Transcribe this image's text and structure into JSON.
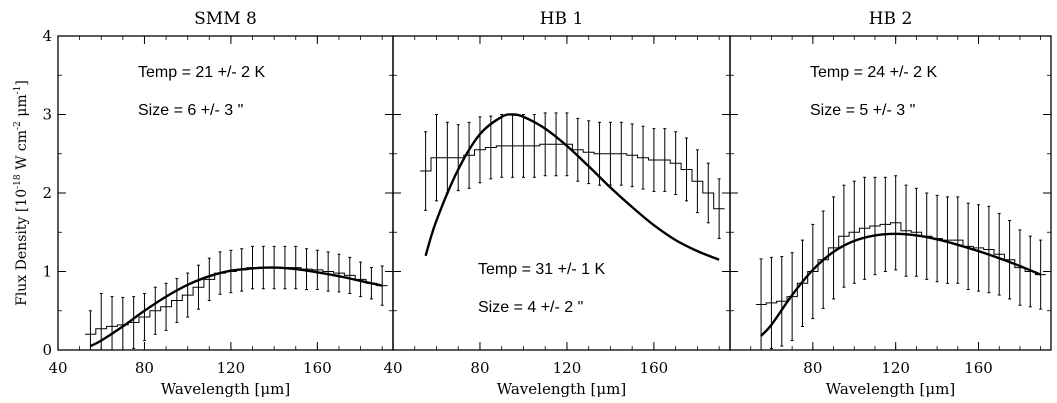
{
  "figure": {
    "ylabel_prefix": "Flux Density [10",
    "ylabel_exp1": "-18",
    "ylabel_mid": " W cm",
    "ylabel_exp2": "-2",
    "ylabel_mu": " μm",
    "ylabel_exp3": "-1",
    "ylabel_suffix": "]",
    "colors": {
      "line": "#000000",
      "background": "#ffffff"
    }
  },
  "chart_data": [
    {
      "type": "line",
      "title": "SMM 8",
      "xlabel": "Wavelength [μm]",
      "ylabel": "Flux Density [10^-18 W cm^-2 μm^-1]",
      "xlim": [
        40,
        195
      ],
      "ylim": [
        0,
        4
      ],
      "xticks": [
        40,
        80,
        120,
        160
      ],
      "xtick_labels": [
        "40",
        "80",
        "120",
        "160"
      ],
      "yticks": [
        0,
        1,
        2,
        3,
        4
      ],
      "ytick_labels": [
        "0",
        "1",
        "2",
        "3",
        "4"
      ],
      "annotations": [
        "Temp = 21 +/- 2 K",
        "Size = 6 +/- 3 \""
      ],
      "annotation_placement": "top",
      "spectrum": {
        "x": [
          55,
          60,
          65,
          70,
          75,
          80,
          85,
          90,
          95,
          100,
          105,
          110,
          115,
          120,
          125,
          130,
          135,
          140,
          145,
          150,
          155,
          160,
          165,
          170,
          175,
          180,
          185,
          190
        ],
        "y": [
          0.2,
          0.27,
          0.3,
          0.32,
          0.35,
          0.42,
          0.5,
          0.55,
          0.63,
          0.7,
          0.8,
          0.9,
          0.98,
          1.0,
          1.02,
          1.05,
          1.05,
          1.05,
          1.05,
          1.05,
          1.03,
          1.02,
          1.0,
          0.98,
          0.95,
          0.9,
          0.85,
          0.82
        ],
        "err": [
          0.3,
          0.45,
          0.38,
          0.35,
          0.33,
          0.3,
          0.3,
          0.3,
          0.28,
          0.28,
          0.28,
          0.27,
          0.27,
          0.27,
          0.27,
          0.27,
          0.27,
          0.27,
          0.27,
          0.27,
          0.26,
          0.25,
          0.25,
          0.24,
          0.23,
          0.22,
          0.2,
          0.25
        ]
      },
      "fit": {
        "x": [
          55,
          60,
          70,
          80,
          90,
          100,
          110,
          120,
          130,
          140,
          150,
          160,
          170,
          180,
          190
        ],
        "y": [
          0.05,
          0.12,
          0.3,
          0.5,
          0.68,
          0.83,
          0.94,
          1.01,
          1.04,
          1.05,
          1.03,
          0.99,
          0.94,
          0.88,
          0.82
        ]
      }
    },
    {
      "type": "line",
      "title": "HB 1",
      "xlabel": "Wavelength [μm]",
      "ylabel": "",
      "xlim": [
        40,
        195
      ],
      "ylim": [
        0,
        4
      ],
      "xticks": [
        40,
        80,
        120,
        160
      ],
      "xtick_labels": [
        "40",
        "80",
        "120",
        "160"
      ],
      "yticks": [
        0,
        1,
        2,
        3,
        4
      ],
      "ytick_labels": [],
      "annotations": [
        "Temp = 31 +/- 1 K",
        "Size = 4 +/- 2 \""
      ],
      "annotation_placement": "bottom",
      "spectrum": {
        "x": [
          55,
          60,
          65,
          70,
          75,
          80,
          85,
          90,
          95,
          100,
          105,
          110,
          115,
          120,
          125,
          130,
          135,
          140,
          145,
          150,
          155,
          160,
          165,
          170,
          175,
          180,
          185,
          190
        ],
        "y": [
          2.28,
          2.45,
          2.45,
          2.45,
          2.48,
          2.55,
          2.58,
          2.6,
          2.6,
          2.6,
          2.6,
          2.62,
          2.62,
          2.62,
          2.55,
          2.52,
          2.5,
          2.5,
          2.5,
          2.48,
          2.45,
          2.42,
          2.42,
          2.38,
          2.3,
          2.15,
          2.0,
          1.8
        ],
        "err": [
          0.5,
          0.55,
          0.45,
          0.42,
          0.42,
          0.42,
          0.4,
          0.4,
          0.4,
          0.4,
          0.4,
          0.4,
          0.4,
          0.4,
          0.4,
          0.4,
          0.4,
          0.4,
          0.4,
          0.4,
          0.4,
          0.4,
          0.4,
          0.4,
          0.4,
          0.4,
          0.38,
          0.38
        ]
      },
      "fit": {
        "x": [
          55,
          60,
          70,
          80,
          90,
          95,
          100,
          110,
          120,
          130,
          140,
          150,
          160,
          170,
          180,
          190
        ],
        "y": [
          1.2,
          1.65,
          2.3,
          2.75,
          2.97,
          3.0,
          2.97,
          2.82,
          2.6,
          2.34,
          2.07,
          1.82,
          1.59,
          1.4,
          1.26,
          1.15
        ]
      }
    },
    {
      "type": "line",
      "title": "HB 2",
      "xlabel": "Wavelength [μm]",
      "ylabel": "",
      "xlim": [
        40,
        195
      ],
      "ylim": [
        0,
        4
      ],
      "xticks": [
        40,
        80,
        120,
        160
      ],
      "xtick_labels": [
        "",
        "80",
        "120",
        "160"
      ],
      "yticks": [
        0,
        1,
        2,
        3,
        4
      ],
      "ytick_labels": [],
      "annotations": [
        "Temp = 24 +/- 2 K",
        "Size = 5 +/- 3 \""
      ],
      "annotation_placement": "top",
      "spectrum": {
        "x": [
          55,
          60,
          65,
          70,
          75,
          80,
          85,
          90,
          95,
          100,
          105,
          110,
          115,
          120,
          125,
          130,
          135,
          140,
          145,
          150,
          155,
          160,
          165,
          170,
          175,
          180,
          185,
          190
        ],
        "y": [
          0.58,
          0.6,
          0.62,
          0.68,
          0.85,
          1.0,
          1.15,
          1.3,
          1.45,
          1.5,
          1.55,
          1.58,
          1.6,
          1.62,
          1.52,
          1.5,
          1.45,
          1.42,
          1.4,
          1.4,
          1.32,
          1.3,
          1.28,
          1.22,
          1.15,
          1.05,
          1.0,
          0.96
        ],
        "err": [
          0.58,
          0.58,
          0.57,
          0.56,
          0.55,
          0.6,
          0.62,
          0.65,
          0.65,
          0.65,
          0.65,
          0.62,
          0.6,
          0.6,
          0.58,
          0.56,
          0.55,
          0.55,
          0.55,
          0.55,
          0.55,
          0.55,
          0.55,
          0.52,
          0.5,
          0.48,
          0.45,
          0.44
        ]
      },
      "fit": {
        "x": [
          55,
          60,
          70,
          80,
          90,
          100,
          110,
          120,
          130,
          140,
          150,
          160,
          170,
          180,
          190
        ],
        "y": [
          0.18,
          0.32,
          0.7,
          1.02,
          1.25,
          1.39,
          1.46,
          1.48,
          1.46,
          1.41,
          1.34,
          1.26,
          1.17,
          1.07,
          0.96
        ]
      }
    }
  ]
}
